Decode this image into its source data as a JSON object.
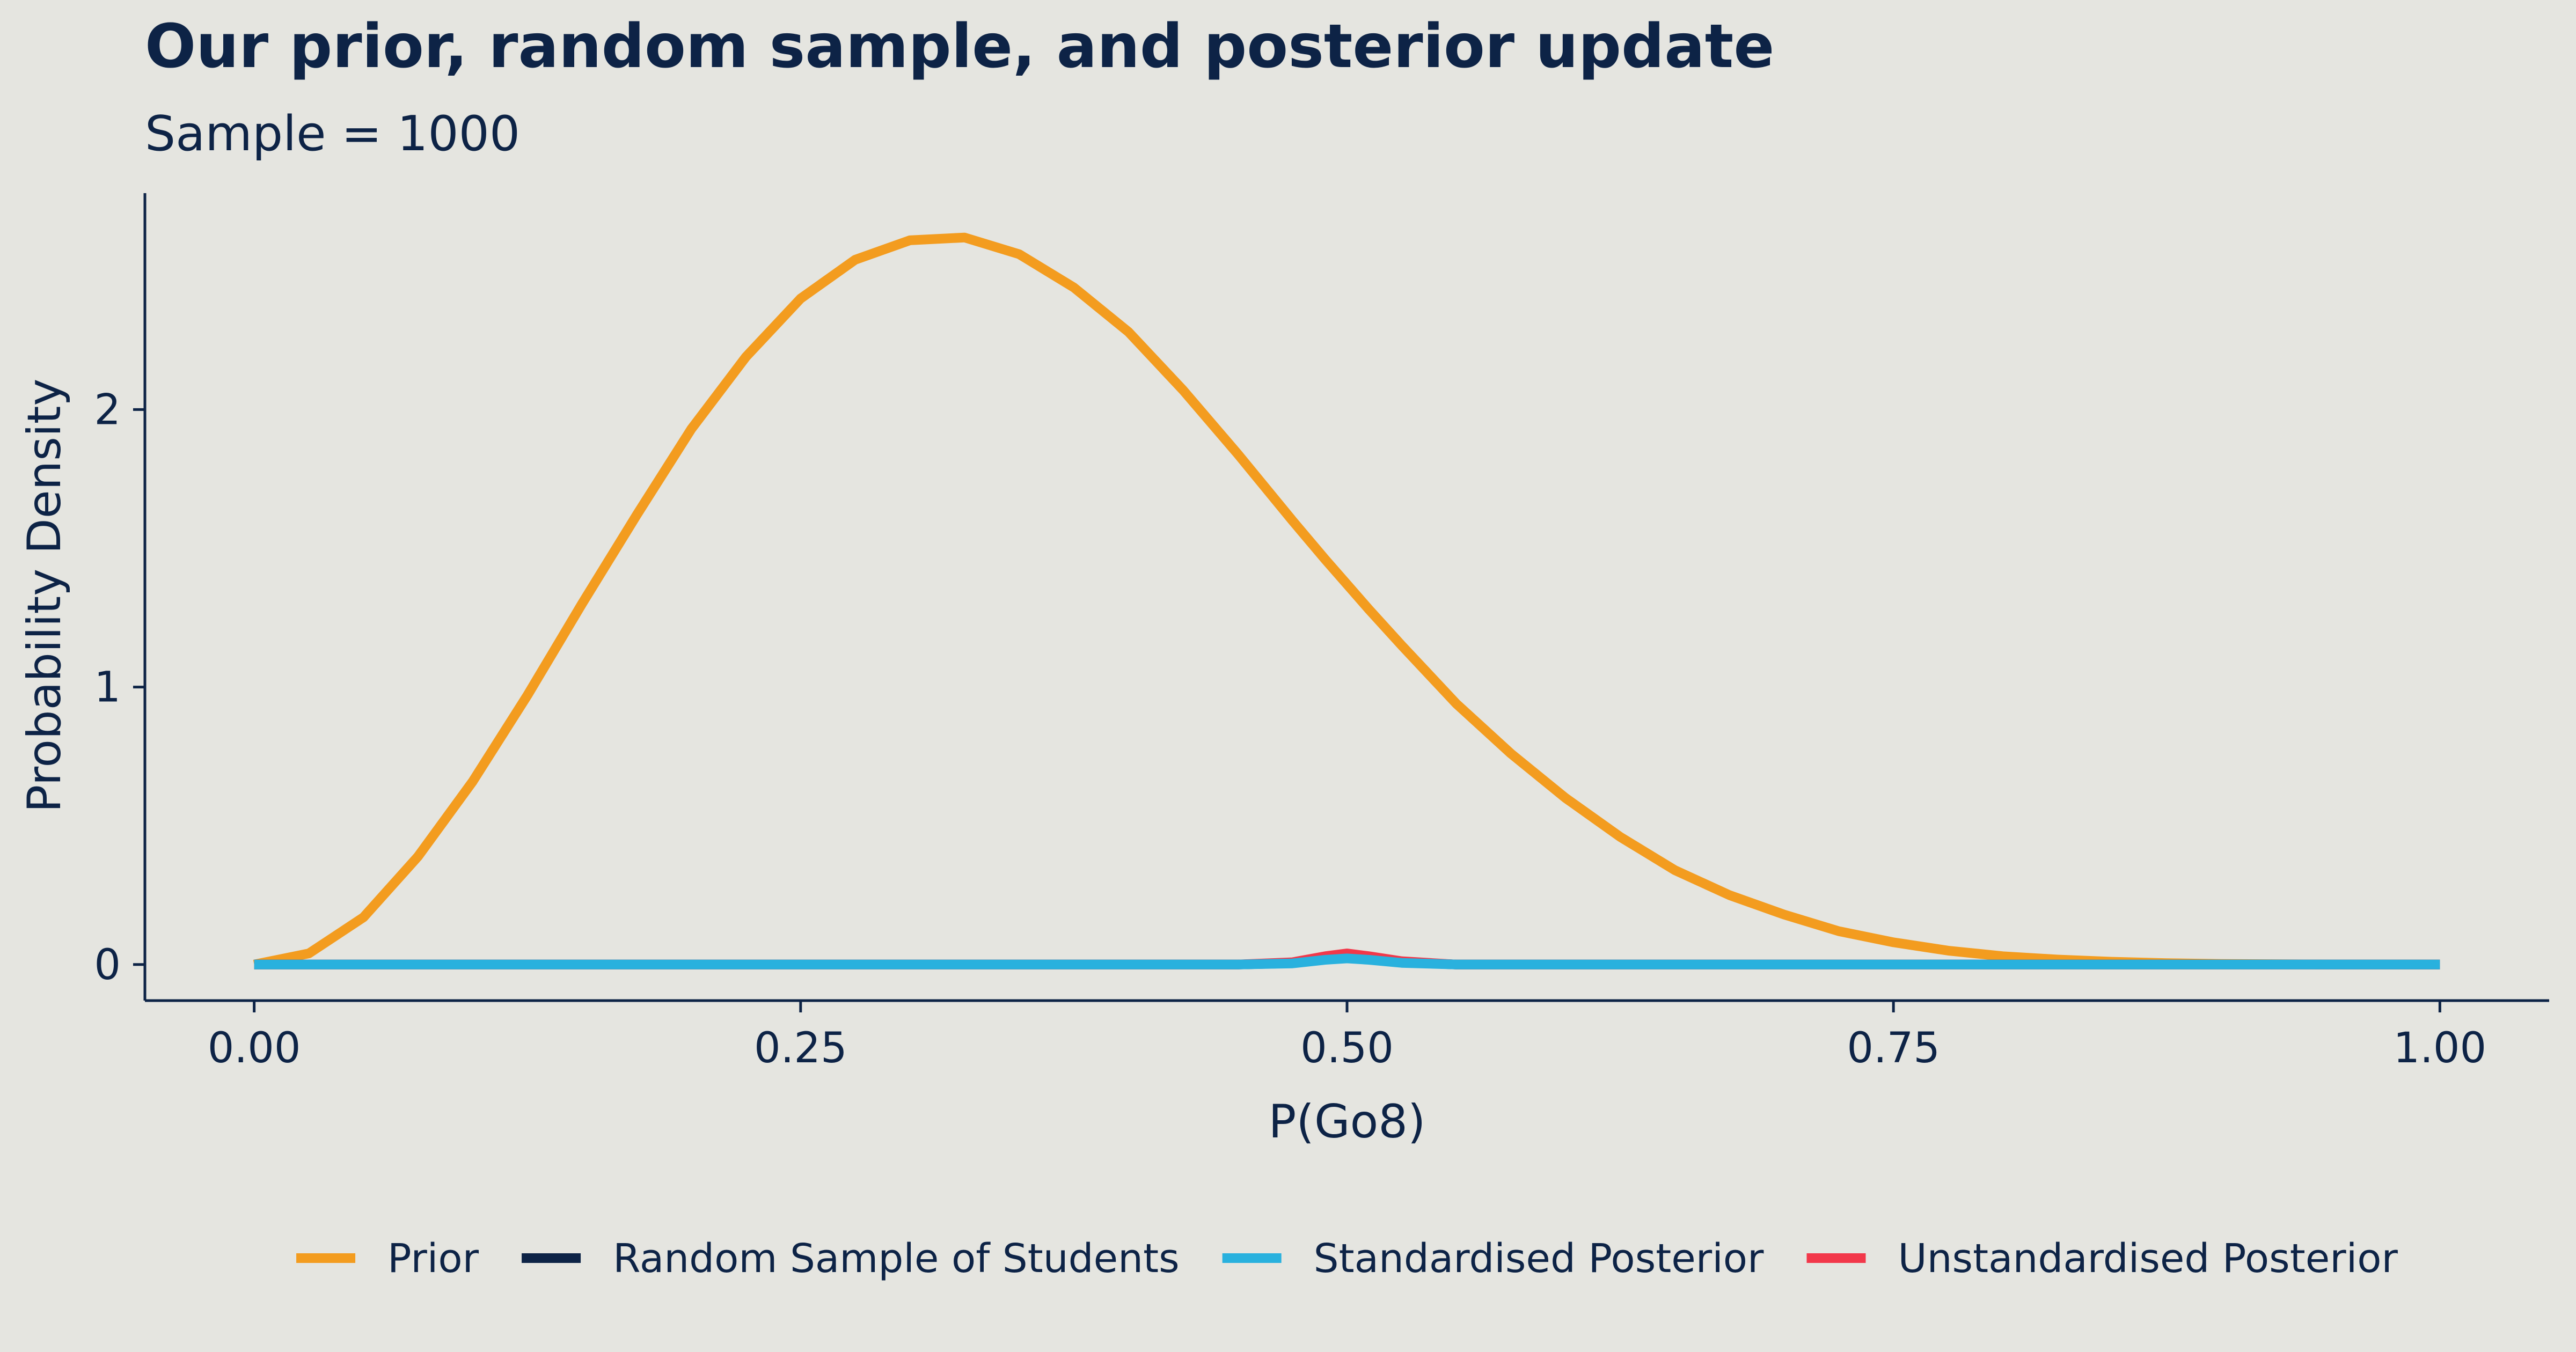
{
  "chart_data": {
    "type": "line",
    "title": "Our prior, random sample, and posterior update",
    "subtitle": "Sample = 1000",
    "xlabel": "P(Go8)",
    "ylabel": "Probability Density",
    "xlim": [
      -0.05,
      1.05
    ],
    "ylim": [
      -0.13,
      2.78
    ],
    "x_ticks": [
      0.0,
      0.25,
      0.5,
      0.75,
      1.0
    ],
    "x_tick_labels": [
      "0.00",
      "0.25",
      "0.50",
      "0.75",
      "1.00"
    ],
    "y_ticks": [
      0,
      1,
      2
    ],
    "y_tick_labels": [
      "0",
      "1",
      "2"
    ],
    "grid": false,
    "legend_position": "bottom",
    "x": [
      0.0,
      0.025,
      0.05,
      0.075,
      0.1,
      0.125,
      0.15,
      0.175,
      0.2,
      0.225,
      0.25,
      0.275,
      0.3,
      0.325,
      0.35,
      0.375,
      0.4,
      0.425,
      0.45,
      0.475,
      0.49,
      0.5,
      0.51,
      0.525,
      0.55,
      0.575,
      0.6,
      0.625,
      0.65,
      0.675,
      0.7,
      0.725,
      0.75,
      0.775,
      0.8,
      0.825,
      0.85,
      0.875,
      0.9,
      0.925,
      0.95,
      0.975,
      1.0
    ],
    "series": [
      {
        "name": "Prior",
        "color": "#f39c1f",
        "values": [
          0.0,
          0.04,
          0.17,
          0.39,
          0.66,
          0.97,
          1.3,
          1.62,
          1.93,
          2.19,
          2.4,
          2.54,
          2.61,
          2.62,
          2.56,
          2.44,
          2.28,
          2.07,
          1.84,
          1.6,
          1.46,
          1.37,
          1.28,
          1.15,
          0.94,
          0.76,
          0.6,
          0.46,
          0.34,
          0.25,
          0.18,
          0.12,
          0.08,
          0.05,
          0.03,
          0.018,
          0.01,
          0.005,
          0.002,
          0.001,
          0.0,
          0.0,
          0.0
        ]
      },
      {
        "name": "Random Sample of Students",
        "color": "#0d2346",
        "values": [
          0.0,
          0.0,
          0.0,
          0.0,
          0.0,
          0.0,
          0.0,
          0.0,
          0.0,
          0.0,
          0.0,
          0.0,
          0.0,
          0.0,
          0.0,
          0.0,
          0.0,
          0.0,
          0.0,
          0.005,
          0.02,
          0.025,
          0.02,
          0.008,
          0.0,
          0.0,
          0.0,
          0.0,
          0.0,
          0.0,
          0.0,
          0.0,
          0.0,
          0.0,
          0.0,
          0.0,
          0.0,
          0.0,
          0.0,
          0.0,
          0.0,
          0.0,
          0.0
        ]
      },
      {
        "name": "Standardised Posterior",
        "color": "#29b1de",
        "values": [
          0.0,
          0.0,
          0.0,
          0.0,
          0.0,
          0.0,
          0.0,
          0.0,
          0.0,
          0.0,
          0.0,
          0.0,
          0.0,
          0.0,
          0.0,
          0.0,
          0.0,
          0.0,
          0.0,
          0.004,
          0.017,
          0.022,
          0.017,
          0.006,
          0.0,
          0.0,
          0.0,
          0.0,
          0.0,
          0.0,
          0.0,
          0.0,
          0.0,
          0.0,
          0.0,
          0.0,
          0.0,
          0.0,
          0.0,
          0.0,
          0.0,
          0.0,
          0.0
        ]
      },
      {
        "name": "Unstandardised Posterior",
        "color": "#f2384a",
        "values": [
          0.0,
          0.0,
          0.0,
          0.0,
          0.0,
          0.0,
          0.0,
          0.0,
          0.0,
          0.0,
          0.0,
          0.0,
          0.0,
          0.0,
          0.0,
          0.0,
          0.0,
          0.0,
          0.0,
          0.008,
          0.03,
          0.04,
          0.03,
          0.012,
          0.0,
          0.0,
          0.0,
          0.0,
          0.0,
          0.0,
          0.0,
          0.0,
          0.0,
          0.0,
          0.0,
          0.0,
          0.0,
          0.0,
          0.0,
          0.0,
          0.0,
          0.0,
          0.0
        ]
      }
    ],
    "draw_order": [
      "Prior",
      "Random Sample of Students",
      "Unstandardised Posterior",
      "Standardised Posterior"
    ]
  },
  "colors": {
    "background": "#e5e5e0",
    "text": "#0d2346",
    "axis": "#0d2346"
  }
}
